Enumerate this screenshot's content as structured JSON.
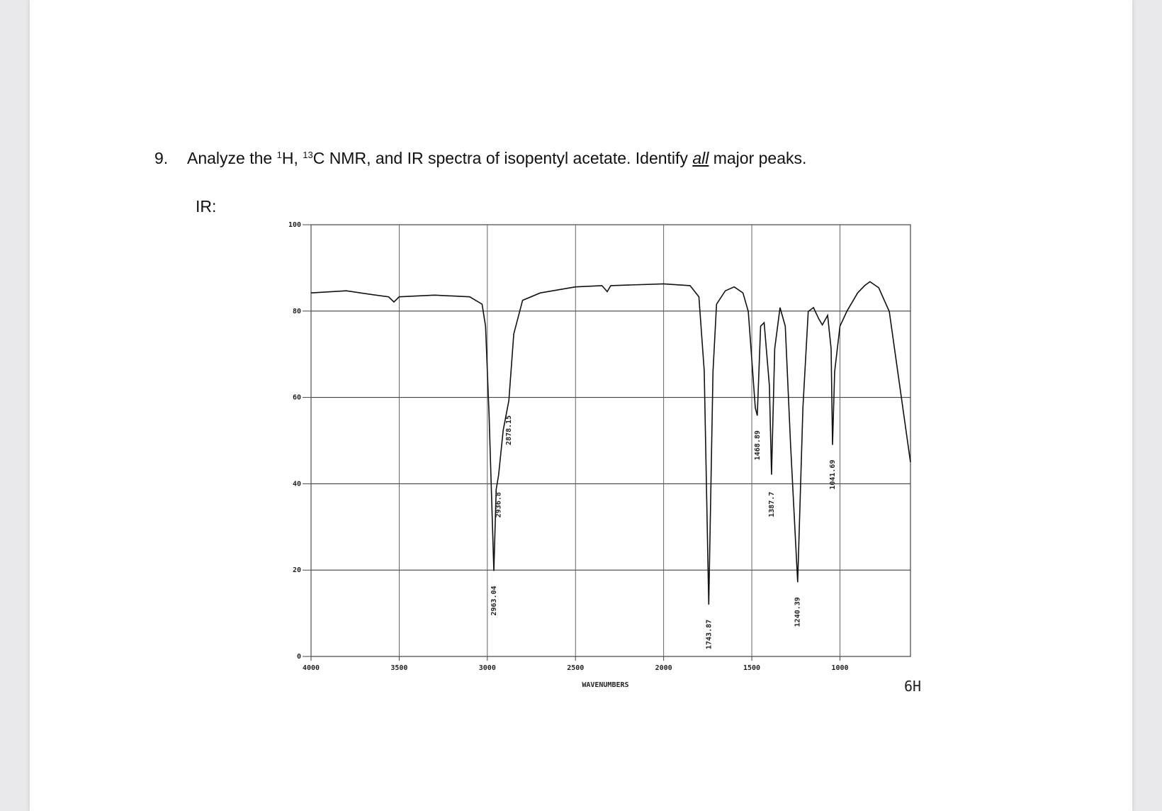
{
  "question": {
    "number": "9.",
    "text_before": "Analyze the ",
    "sup1": "1",
    "text_mid1": "H, ",
    "sup2": "13",
    "text_mid2": "C NMR, and IR spectra of isopentyl acetate. Identify ",
    "emphasis": "all",
    "text_after": " major peaks."
  },
  "section_label": "IR:",
  "margin_note": "6H",
  "chart_data": {
    "type": "line",
    "x_label": "WAVENUMBERS",
    "color": "#111111",
    "xlim": [
      4000,
      600
    ],
    "xticks": [
      4000,
      3500,
      3000,
      2500,
      2000,
      1500,
      1000
    ],
    "ylim": [
      0,
      100
    ],
    "yticks": [
      0,
      20,
      40,
      60,
      80,
      100
    ],
    "grid": true,
    "x": [
      4000,
      3800,
      3650,
      3560,
      3530,
      3500,
      3300,
      3100,
      3030,
      3010,
      2990,
      2963,
      2950,
      2936,
      2910,
      2878,
      2850,
      2800,
      2700,
      2500,
      2350,
      2320,
      2300,
      2000,
      1850,
      1800,
      1770,
      1744,
      1720,
      1700,
      1650,
      1600,
      1550,
      1520,
      1480,
      1469,
      1450,
      1430,
      1400,
      1388,
      1370,
      1340,
      1310,
      1280,
      1240,
      1210,
      1180,
      1150,
      1120,
      1100,
      1070,
      1050,
      1042,
      1030,
      1000,
      960,
      900,
      860,
      830,
      780,
      720,
      600
    ],
    "values": [
      84.2,
      84.7,
      83.8,
      83.3,
      82.1,
      83.3,
      83.7,
      83.3,
      81.6,
      76.5,
      55.8,
      19.8,
      38.7,
      42,
      52.4,
      59.3,
      74.7,
      82.5,
      84.2,
      85.6,
      85.9,
      84.5,
      85.9,
      86.3,
      85.9,
      83.3,
      66.2,
      12,
      66,
      81.6,
      84.7,
      85.6,
      84.2,
      79.9,
      57.6,
      55.8,
      76.5,
      77.3,
      62.7,
      42.1,
      71.3,
      80.8,
      76.5,
      49,
      17.2,
      57.6,
      79.9,
      80.8,
      78.2,
      76.8,
      79,
      71.3,
      49,
      66,
      76.5,
      80,
      84.2,
      85.9,
      86.8,
      85.4,
      79.9,
      45
    ],
    "peaks": [
      2963.04,
      2936.8,
      2878.15,
      1743.87,
      1468.89,
      1387.7,
      1240.39,
      1041.69
    ]
  }
}
